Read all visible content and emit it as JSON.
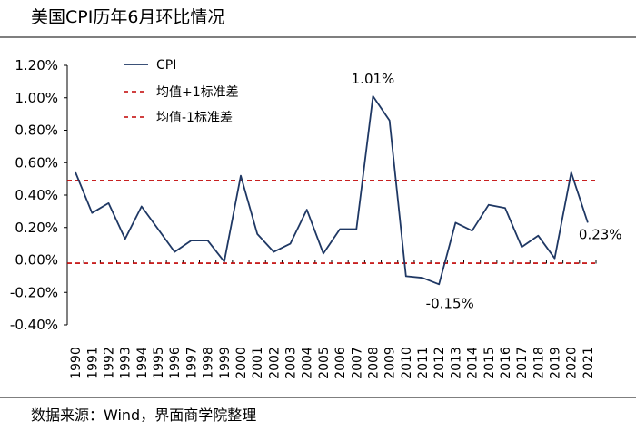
{
  "header": {
    "title": "美国CPI历年6月环比情况"
  },
  "footer": {
    "source": "数据来源：Wind，界面商学院整理"
  },
  "chart_data": {
    "type": "line",
    "title": "美国CPI历年6月环比情况",
    "xlabel": "",
    "ylabel": "",
    "x": [
      "1990",
      "1991",
      "1992",
      "1993",
      "1994",
      "1995",
      "1996",
      "1997",
      "1998",
      "1999",
      "2000",
      "2001",
      "2002",
      "2003",
      "2004",
      "2005",
      "2006",
      "2007",
      "2008",
      "2009",
      "2010",
      "2011",
      "2012",
      "2013",
      "2014",
      "2015",
      "2016",
      "2017",
      "2018",
      "2019",
      "2020",
      "2021"
    ],
    "series": [
      {
        "name": "CPI",
        "color": "#1f3864",
        "values": [
          0.54,
          0.29,
          0.35,
          0.13,
          0.33,
          0.19,
          0.05,
          0.12,
          0.12,
          -0.01,
          0.52,
          0.16,
          0.05,
          0.1,
          0.31,
          0.04,
          0.19,
          0.19,
          1.01,
          0.86,
          -0.1,
          -0.11,
          -0.15,
          0.23,
          0.18,
          0.34,
          0.32,
          0.08,
          0.15,
          0.01,
          0.54,
          0.23
        ]
      }
    ],
    "reference_lines": [
      {
        "name": "均值+1标准差",
        "value": 0.49,
        "color": "#c00000",
        "style": "dashed"
      },
      {
        "name": "均值-1标准差",
        "value": -0.02,
        "color": "#c00000",
        "style": "dashed"
      }
    ],
    "ylim": [
      -0.4,
      1.2
    ],
    "yticks": [
      -0.4,
      -0.2,
      0.0,
      0.2,
      0.4,
      0.6,
      0.8,
      1.0,
      1.2
    ],
    "ytick_labels": [
      "-0.40%",
      "-0.20%",
      "0.00%",
      "0.20%",
      "0.40%",
      "0.60%",
      "0.80%",
      "1.00%",
      "1.20%"
    ],
    "annotations": [
      {
        "x": "2008",
        "y": 1.01,
        "text": "1.01%"
      },
      {
        "x": "2012",
        "y": -0.15,
        "text": "-0.15%"
      },
      {
        "x": "2021",
        "y": 0.23,
        "text": "0.23%"
      }
    ],
    "legend": {
      "position": "top-left",
      "entries": [
        "CPI",
        "均值+1标准差",
        "均值-1标准差"
      ]
    },
    "grid": false
  }
}
